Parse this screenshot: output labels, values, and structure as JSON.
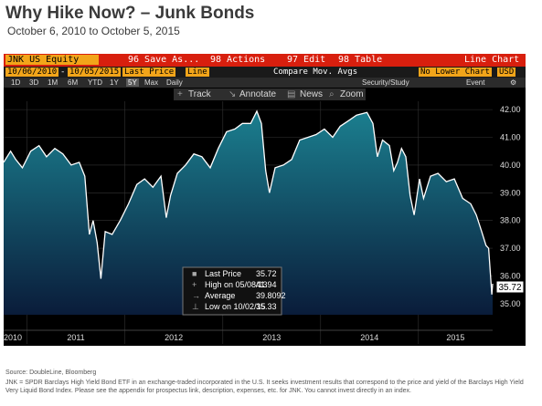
{
  "slide": {
    "title": "Why Hike Now? – Junk Bonds",
    "subtitle": "October 6, 2010 to October 5, 2015"
  },
  "terminal": {
    "ticker": "JNK US Equity",
    "menu": [
      "96 Save As...",
      "98 Actions",
      "97 Edit",
      "98 Table"
    ],
    "chart_label": "Line Chart",
    "start_date": "10/06/2010",
    "end_date": "10/05/2015",
    "field": "Last Price",
    "style": "Line",
    "compare_label": "Compare Mov. Avgs",
    "lower_chart": "No Lower Chart",
    "currency": "USD",
    "periods": [
      "1D",
      "3D",
      "1M",
      "6M",
      "YTD",
      "1Y",
      "5Y",
      "Max"
    ],
    "selected_period": "5Y",
    "frequency": "Daily",
    "security_study": "Security/Study",
    "event": "Event",
    "tools": [
      "Track",
      "Annotate",
      "News",
      "Zoom"
    ]
  },
  "legend": {
    "rows": [
      {
        "label": "Last Price",
        "value": "35.72"
      },
      {
        "label": "High on 05/08/13",
        "value": "41.94"
      },
      {
        "label": "Average",
        "value": "39.8092"
      },
      {
        "label": "Low on 10/02/15",
        "value": "35.33"
      }
    ]
  },
  "last_price_tag": "35.72",
  "footer": {
    "source": "Source: DoubleLine, Bloomberg",
    "note": "JNK = SPDR Barclays High Yield Bond ETF in an exchange-traded incorporated in the U.S. It seeks investment results that correspond to the price and yield of the Barclays High Yield Very Liquid Bond Index. Please see the appendix for prospectus link, description, expenses, etc. for JNK. You cannot invest directly in an index."
  },
  "colors": {
    "terminal_red": "#d81f0e",
    "terminal_orange": "#f2a51a",
    "price_line": "#ffffff",
    "area_top": "#1b7f8f",
    "area_bottom": "#0a1c3a"
  },
  "chart_data": {
    "type": "area",
    "title": "",
    "xlabel": "",
    "ylabel": "",
    "x_ticks": [
      "2010",
      "2011",
      "2012",
      "2013",
      "2014",
      "2015"
    ],
    "y_ticks": [
      35.0,
      36.0,
      37.0,
      38.0,
      39.0,
      40.0,
      41.0,
      42.0
    ],
    "ylim": [
      34.6,
      42.3
    ],
    "xlim": [
      "2010-10-06",
      "2015-10-05"
    ],
    "grid": true,
    "series": [
      {
        "name": "Last Price",
        "x": [
          "2010-10-06",
          "2010-11-01",
          "2010-11-20",
          "2010-12-15",
          "2011-01-15",
          "2011-02-15",
          "2011-03-15",
          "2011-04-15",
          "2011-05-15",
          "2011-06-15",
          "2011-07-15",
          "2011-08-05",
          "2011-08-22",
          "2011-09-05",
          "2011-09-20",
          "2011-10-04",
          "2011-10-20",
          "2011-11-15",
          "2011-12-15",
          "2012-01-15",
          "2012-02-15",
          "2012-03-15",
          "2012-04-15",
          "2012-05-15",
          "2012-06-04",
          "2012-06-20",
          "2012-07-15",
          "2012-08-15",
          "2012-09-15",
          "2012-10-15",
          "2012-11-15",
          "2012-12-15",
          "2013-01-15",
          "2013-02-15",
          "2013-03-15",
          "2013-04-15",
          "2013-05-08",
          "2013-05-25",
          "2013-06-10",
          "2013-06-24",
          "2013-07-15",
          "2013-08-15",
          "2013-09-15",
          "2013-10-15",
          "2013-11-15",
          "2013-12-15",
          "2014-01-15",
          "2014-02-15",
          "2014-03-15",
          "2014-04-15",
          "2014-05-15",
          "2014-06-23",
          "2014-07-15",
          "2014-08-01",
          "2014-08-20",
          "2014-09-15",
          "2014-10-01",
          "2014-10-15",
          "2014-10-30",
          "2014-11-15",
          "2014-12-01",
          "2014-12-16",
          "2015-01-05",
          "2015-01-20",
          "2015-02-15",
          "2015-03-15",
          "2015-04-15",
          "2015-05-15",
          "2015-06-15",
          "2015-07-15",
          "2015-08-05",
          "2015-08-25",
          "2015-09-10",
          "2015-09-20",
          "2015-10-02",
          "2015-10-05"
        ],
        "values": [
          40.1,
          40.5,
          40.2,
          39.9,
          40.5,
          40.7,
          40.3,
          40.6,
          40.4,
          40.0,
          40.1,
          39.6,
          37.5,
          38.0,
          37.2,
          35.9,
          37.6,
          37.5,
          38.0,
          38.6,
          39.3,
          39.5,
          39.2,
          39.6,
          38.1,
          38.9,
          39.7,
          40.0,
          40.4,
          40.3,
          39.9,
          40.6,
          41.2,
          41.3,
          41.5,
          41.5,
          41.94,
          41.5,
          39.8,
          39.0,
          39.9,
          40.0,
          40.2,
          40.9,
          41.0,
          41.1,
          41.3,
          41.0,
          41.4,
          41.6,
          41.8,
          41.9,
          41.5,
          40.3,
          40.9,
          40.7,
          39.8,
          40.1,
          40.6,
          40.3,
          38.9,
          38.2,
          39.5,
          38.8,
          39.6,
          39.7,
          39.4,
          39.5,
          38.8,
          38.6,
          38.2,
          37.6,
          37.1,
          37.0,
          35.33,
          35.72
        ]
      }
    ],
    "annotations": [
      {
        "label": "High on 05/08/13",
        "value": 41.94
      },
      {
        "label": "Average",
        "value": 39.8092
      },
      {
        "label": "Low on 10/02/15",
        "value": 35.33
      }
    ]
  }
}
